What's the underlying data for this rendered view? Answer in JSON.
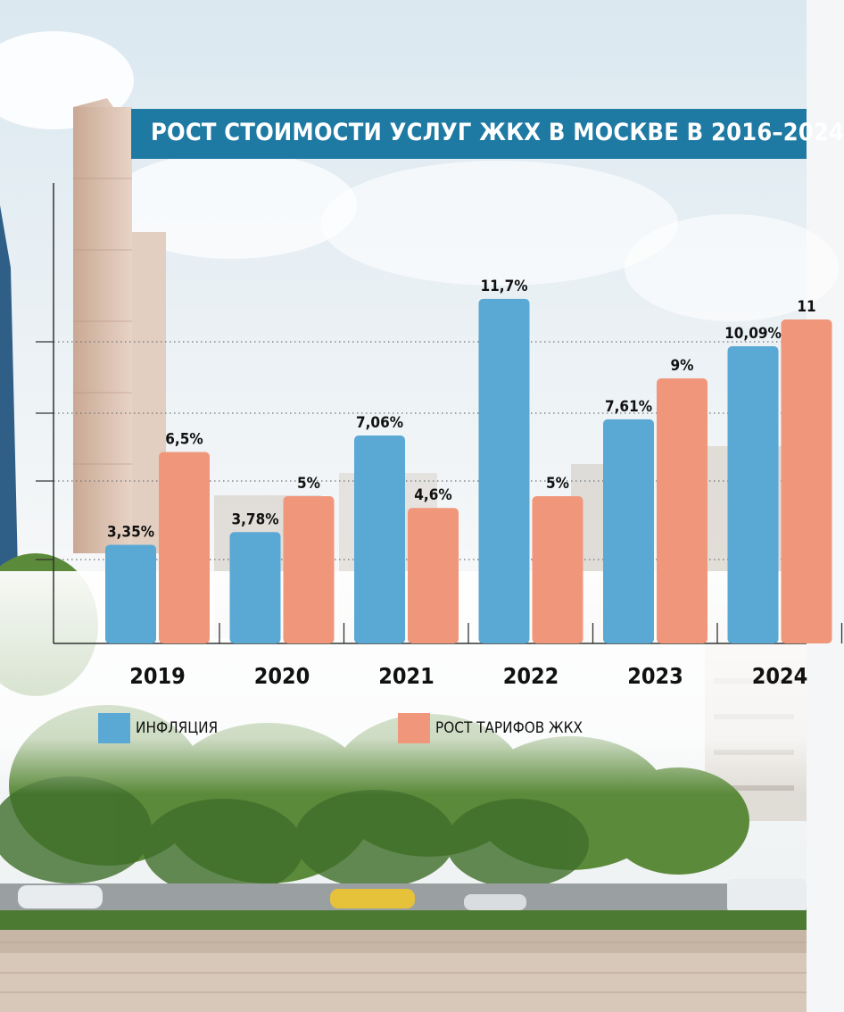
{
  "title": "РОСТ СТОИМОСТИ УСЛУГ ЖКХ В МОСКВЕ В 2016–2024",
  "colors": {
    "inflation": "#5aa8d4",
    "tariffs": "#f0967a",
    "banner": "#1f7aa3"
  },
  "legend": {
    "inflation": "ИНФЛЯЦИЯ",
    "tariffs": "РОСТ ТАРИФОВ ЖКХ"
  },
  "chart_data": {
    "type": "bar",
    "categories": [
      "2019",
      "2020",
      "2021",
      "2022",
      "2023",
      "2024"
    ],
    "series": [
      {
        "name": "ИНФЛЯЦИЯ",
        "values": [
          3.35,
          3.78,
          7.06,
          11.7,
          7.61,
          10.09
        ],
        "labels": [
          "3,35%",
          "3,78%",
          "7,06%",
          "11,7%",
          "7,61%",
          "10,09%"
        ]
      },
      {
        "name": "РОСТ ТАРИФОВ ЖКХ",
        "values": [
          6.5,
          5,
          4.6,
          5,
          9,
          11
        ],
        "labels": [
          "6,5%",
          "5%",
          "4,6%",
          "5%",
          "9%",
          "11"
        ]
      }
    ],
    "gridlines": "dotted",
    "legend_position": "bottom-left"
  }
}
